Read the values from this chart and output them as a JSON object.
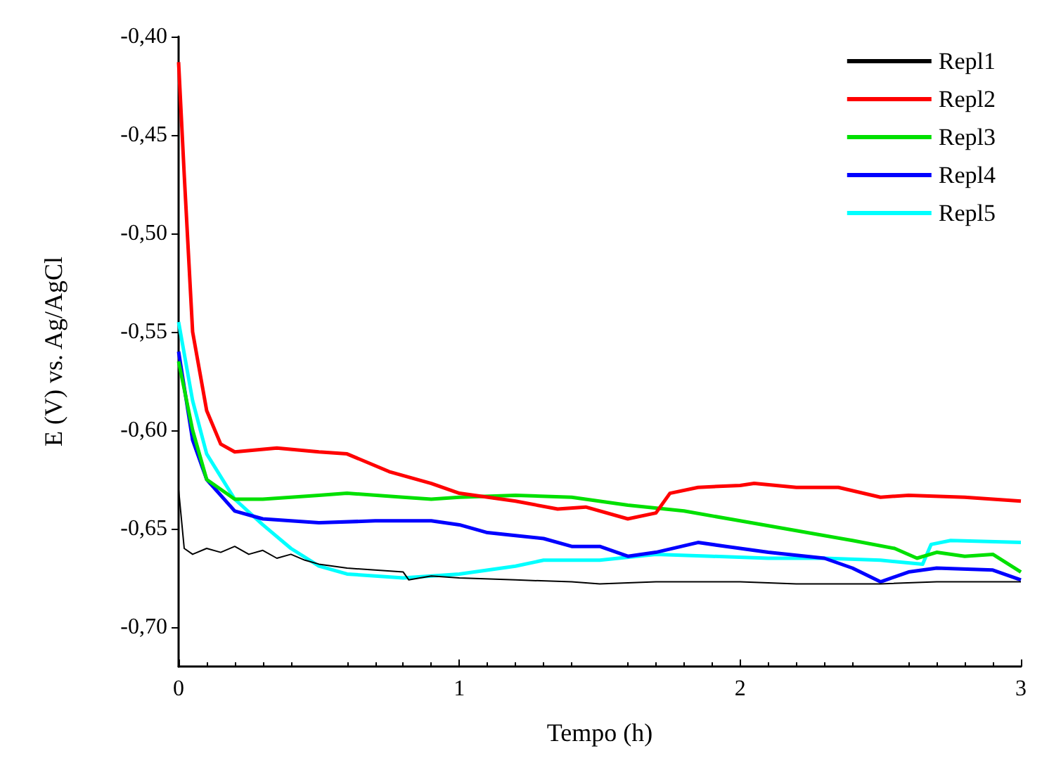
{
  "chart_data": {
    "type": "line",
    "xlabel": "Tempo (h)",
    "ylabel": "E (V) vs. Ag/AgCl",
    "xlim": [
      0,
      3
    ],
    "xticks": [
      0,
      1,
      2,
      3
    ],
    "ylim": [
      -0.72,
      -0.4
    ],
    "yticks": [
      {
        "value": -0.4,
        "label": "-0,40"
      },
      {
        "value": -0.45,
        "label": "-0,45"
      },
      {
        "value": -0.5,
        "label": "-0,50"
      },
      {
        "value": -0.55,
        "label": "-0,55"
      },
      {
        "value": -0.6,
        "label": "-0,60"
      },
      {
        "value": -0.65,
        "label": "-0,65"
      },
      {
        "value": -0.7,
        "label": "-0,70"
      }
    ],
    "grid": false,
    "legend": "top right",
    "series": [
      {
        "name": "Repl1",
        "color": "#000000",
        "x": [
          0,
          0.02,
          0.05,
          0.1,
          0.15,
          0.2,
          0.25,
          0.3,
          0.35,
          0.4,
          0.45,
          0.5,
          0.55,
          0.6,
          0.7,
          0.8,
          0.82,
          0.9,
          1.0,
          1.2,
          1.4,
          1.5,
          1.7,
          2.0,
          2.2,
          2.5,
          2.7,
          3.0
        ],
        "values": [
          -0.63,
          -0.66,
          -0.663,
          -0.66,
          -0.662,
          -0.659,
          -0.663,
          -0.661,
          -0.665,
          -0.663,
          -0.666,
          -0.668,
          -0.669,
          -0.67,
          -0.671,
          -0.672,
          -0.676,
          -0.674,
          -0.675,
          -0.676,
          -0.677,
          -0.678,
          -0.677,
          -0.677,
          -0.678,
          -0.678,
          -0.677,
          -0.677
        ]
      },
      {
        "name": "Repl2",
        "color": "#ff0000",
        "x": [
          0,
          0.02,
          0.05,
          0.1,
          0.15,
          0.2,
          0.35,
          0.5,
          0.6,
          0.75,
          0.9,
          1.0,
          1.2,
          1.35,
          1.45,
          1.6,
          1.7,
          1.75,
          1.85,
          2.0,
          2.05,
          2.2,
          2.35,
          2.5,
          2.6,
          2.8,
          3.0
        ],
        "values": [
          -0.413,
          -0.47,
          -0.55,
          -0.59,
          -0.607,
          -0.611,
          -0.609,
          -0.611,
          -0.612,
          -0.621,
          -0.627,
          -0.632,
          -0.636,
          -0.64,
          -0.639,
          -0.645,
          -0.642,
          -0.632,
          -0.629,
          -0.628,
          -0.627,
          -0.629,
          -0.629,
          -0.634,
          -0.633,
          -0.634,
          -0.636
        ]
      },
      {
        "name": "Repl3",
        "color": "#00e000",
        "x": [
          0,
          0.05,
          0.1,
          0.2,
          0.3,
          0.5,
          0.6,
          0.8,
          0.9,
          1.0,
          1.2,
          1.4,
          1.6,
          1.8,
          2.0,
          2.2,
          2.4,
          2.55,
          2.63,
          2.7,
          2.8,
          2.9,
          3.0
        ],
        "values": [
          -0.565,
          -0.6,
          -0.625,
          -0.635,
          -0.635,
          -0.633,
          -0.632,
          -0.634,
          -0.635,
          -0.634,
          -0.633,
          -0.634,
          -0.638,
          -0.641,
          -0.646,
          -0.651,
          -0.656,
          -0.66,
          -0.665,
          -0.662,
          -0.664,
          -0.663,
          -0.672
        ]
      },
      {
        "name": "Repl4",
        "color": "#0000ff",
        "x": [
          0,
          0.05,
          0.1,
          0.2,
          0.3,
          0.5,
          0.7,
          0.9,
          1.0,
          1.1,
          1.3,
          1.4,
          1.5,
          1.6,
          1.7,
          1.85,
          1.95,
          2.1,
          2.3,
          2.4,
          2.5,
          2.6,
          2.7,
          2.9,
          3.0
        ],
        "values": [
          -0.56,
          -0.605,
          -0.625,
          -0.641,
          -0.645,
          -0.647,
          -0.646,
          -0.646,
          -0.648,
          -0.652,
          -0.655,
          -0.659,
          -0.659,
          -0.664,
          -0.662,
          -0.657,
          -0.659,
          -0.662,
          -0.665,
          -0.67,
          -0.677,
          -0.672,
          -0.67,
          -0.671,
          -0.676
        ]
      },
      {
        "name": "Repl5",
        "color": "#00ffff",
        "x": [
          0,
          0.05,
          0.1,
          0.2,
          0.3,
          0.4,
          0.5,
          0.6,
          0.8,
          1.0,
          1.2,
          1.3,
          1.5,
          1.7,
          1.9,
          2.1,
          2.3,
          2.5,
          2.65,
          2.68,
          2.75,
          3.0
        ],
        "values": [
          -0.545,
          -0.585,
          -0.612,
          -0.635,
          -0.648,
          -0.66,
          -0.669,
          -0.673,
          -0.675,
          -0.673,
          -0.669,
          -0.666,
          -0.666,
          -0.663,
          -0.664,
          -0.665,
          -0.665,
          -0.666,
          -0.668,
          -0.658,
          -0.656,
          -0.657
        ]
      }
    ]
  }
}
